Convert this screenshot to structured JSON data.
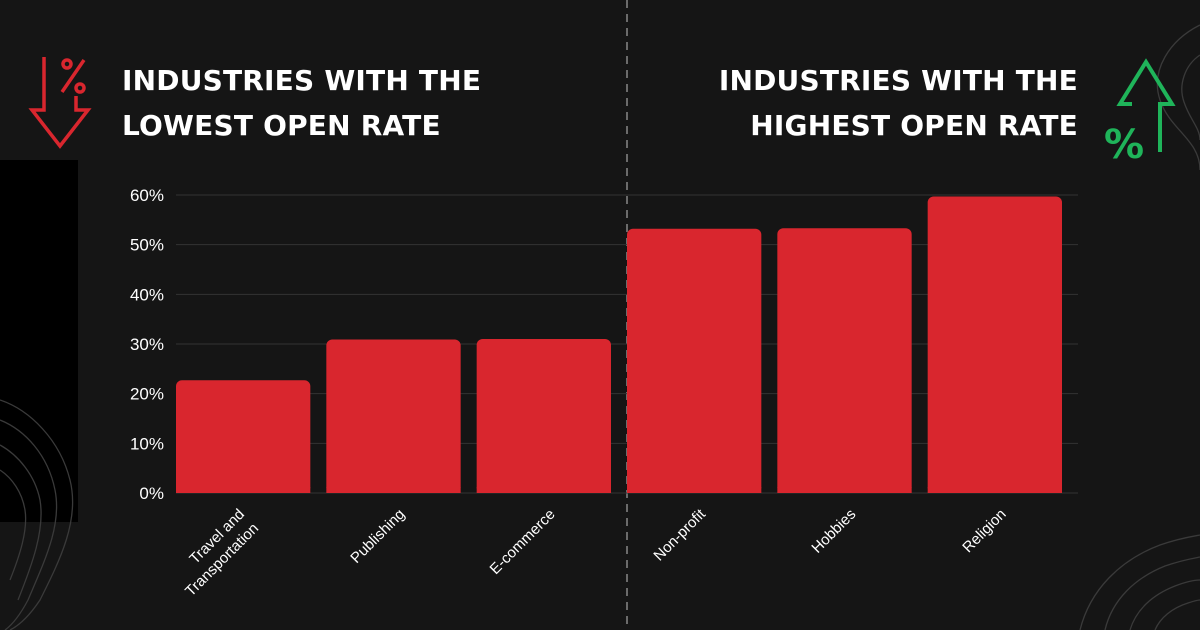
{
  "left_heading": {
    "line1": "INDUSTRIES WITH THE",
    "line2": "LOWEST OPEN RATE",
    "icon": "percent-arrow-down-icon",
    "icon_color": "#d9262e"
  },
  "right_heading": {
    "line1": "INDUSTRIES WITH THE",
    "line2": "HIGHEST OPEN RATE",
    "icon": "percent-arrow-up-icon",
    "icon_color": "#1fb45a"
  },
  "icon_text": {
    "percent": "%"
  },
  "chart_data": {
    "type": "bar",
    "categories": [
      [
        "Travel and",
        "Transportation"
      ],
      [
        "Publishing"
      ],
      [
        "E-commerce"
      ],
      [
        "Non-profit"
      ],
      [
        "Hobbies"
      ],
      [
        "Religion"
      ]
    ],
    "values": [
      22.7,
      30.9,
      31.0,
      53.2,
      53.3,
      59.7
    ],
    "ylim": [
      0,
      60
    ],
    "yticks": [
      0,
      10,
      20,
      30,
      40,
      50,
      60
    ],
    "ytick_labels": [
      "0%",
      "10%",
      "20%",
      "30%",
      "40%",
      "50%",
      "60%"
    ],
    "bar_color": "#d9262e",
    "grid": true,
    "divider": "dashed line between E-commerce and Non-profit"
  }
}
